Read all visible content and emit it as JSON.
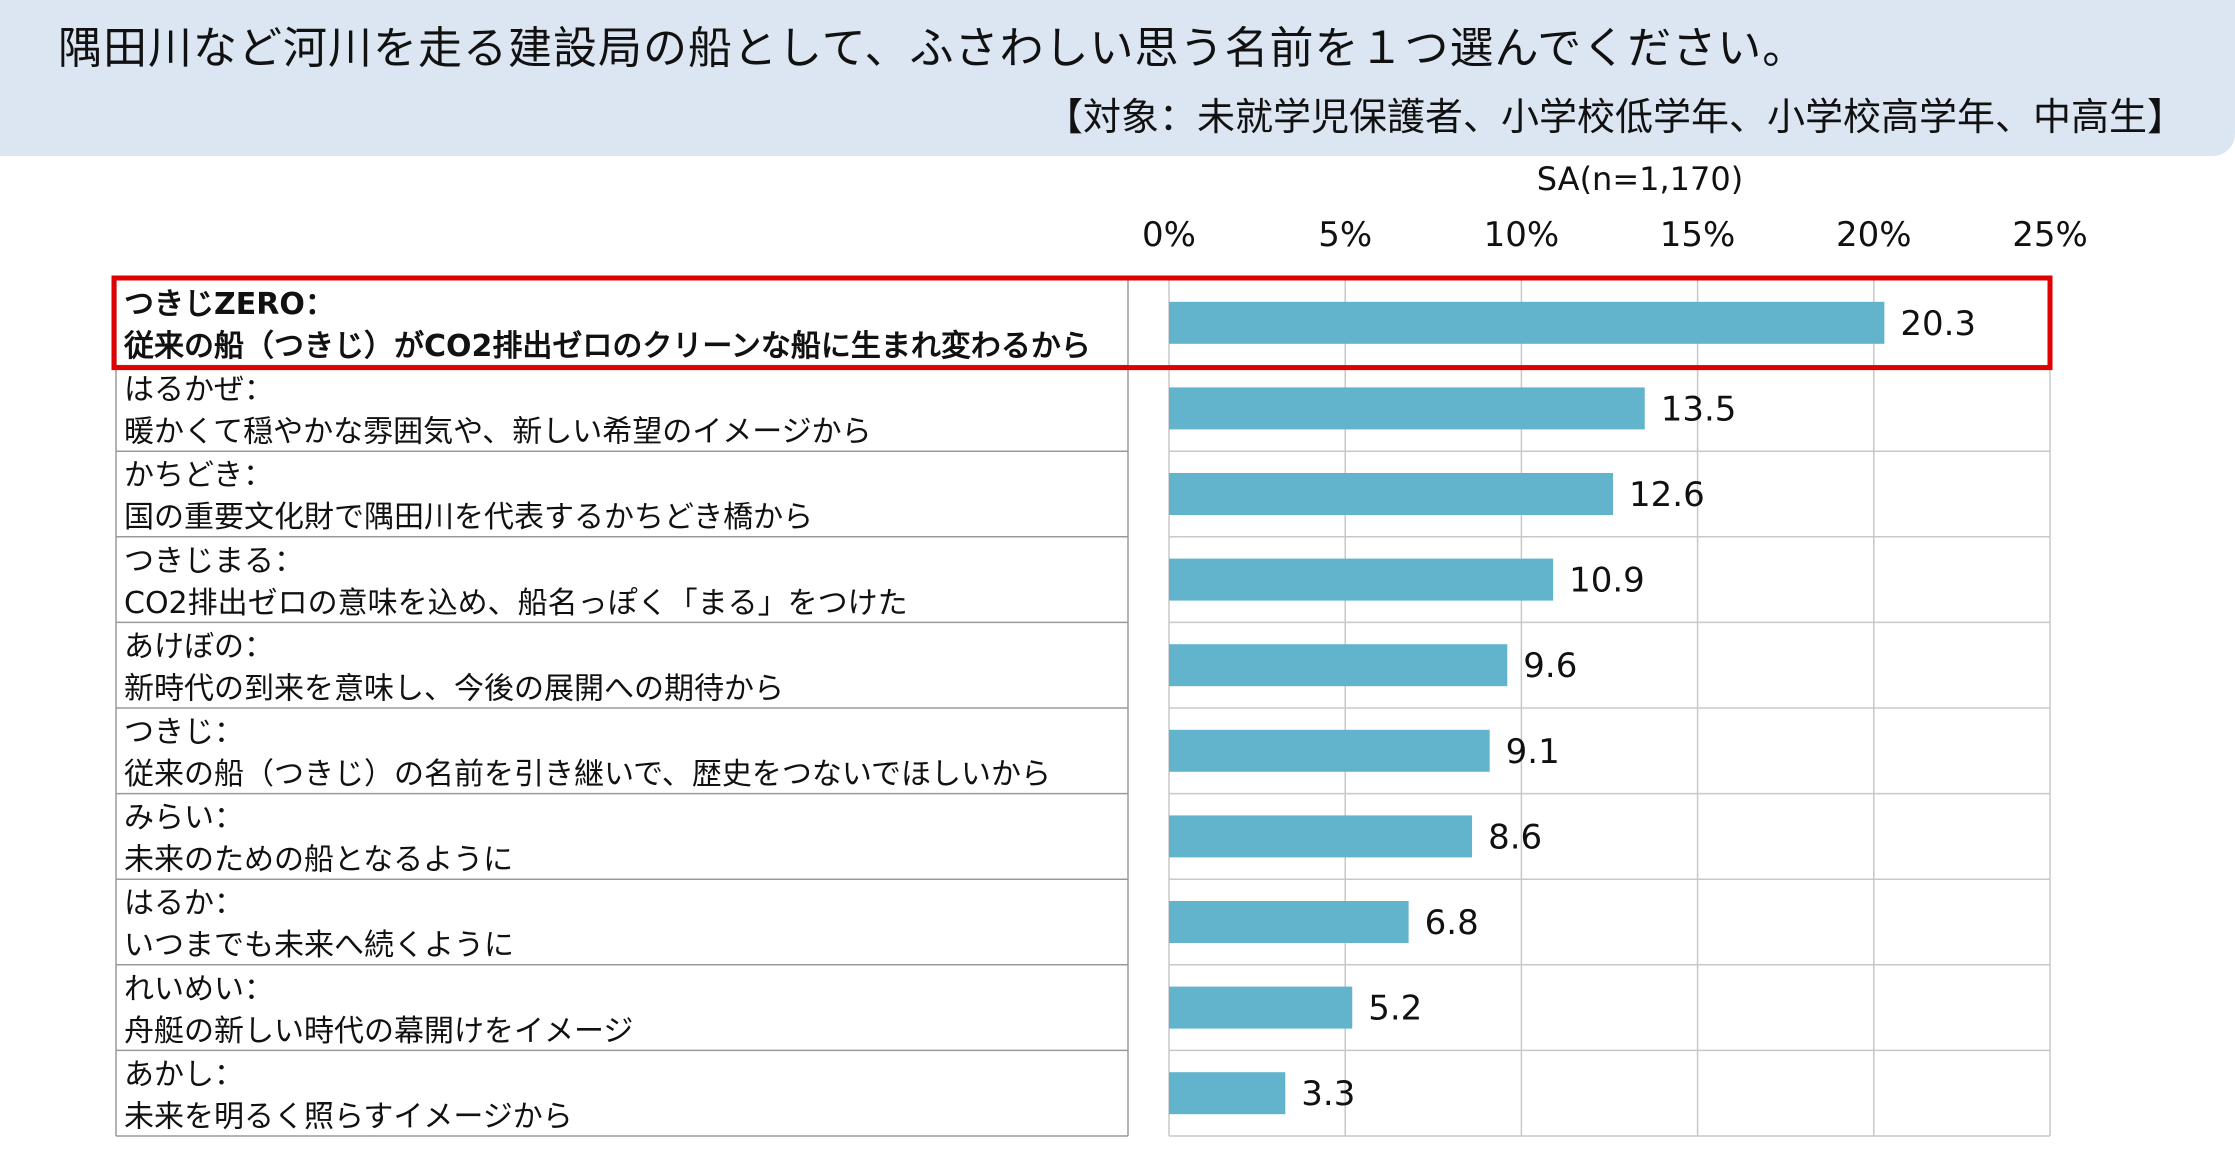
{
  "header": {
    "title": "隅田川など河川を走る建設局の船として、ふさわしい思う名前を１つ選んでください。",
    "target": "【対象：未就学児保護者、小学校低学年、小学校高学年、中高生】"
  },
  "chart_data": {
    "type": "bar",
    "orientation": "horizontal",
    "sample_note": "SA(n=1,170)",
    "xlim": [
      0,
      25
    ],
    "ticks": [
      "0%",
      "5%",
      "10%",
      "15%",
      "20%",
      "25%"
    ],
    "tick_values": [
      0,
      5,
      10,
      15,
      20,
      25
    ],
    "bar_color": "#62b4cc",
    "highlight_color": "#e00000",
    "highlight_index": 0,
    "categories": [
      {
        "name": "つきじZERO：",
        "reason": "従来の船（つきじ）がCO2排出ゼロのクリーンな船に生まれ変わるから"
      },
      {
        "name": "はるかぜ：",
        "reason": "暖かくて穏やかな雰囲気や、新しい希望のイメージから"
      },
      {
        "name": "かちどき：",
        "reason": "国の重要文化財で隅田川を代表するかちどき橋から"
      },
      {
        "name": "つきじまる：",
        "reason": "CO2排出ゼロの意味を込め、船名っぽく「まる」をつけた"
      },
      {
        "name": "あけぼの：",
        "reason": "新時代の到来を意味し、今後の展開への期待から"
      },
      {
        "name": "つきじ：",
        "reason": "従来の船（つきじ）の名前を引き継いで、歴史をつないでほしいから"
      },
      {
        "name": "みらい：",
        "reason": "未来のための船となるように"
      },
      {
        "name": "はるか：",
        "reason": "いつまでも未来へ続くように"
      },
      {
        "name": "れいめい：",
        "reason": "舟艇の新しい時代の幕開けをイメージ"
      },
      {
        "name": "あかし：",
        "reason": "未来を明るく照らすイメージから"
      }
    ],
    "values": [
      20.3,
      13.5,
      12.6,
      10.9,
      9.6,
      9.1,
      8.6,
      6.8,
      5.2,
      3.3
    ],
    "value_labels": [
      "20.3",
      "13.5",
      "12.6",
      "10.9",
      "9.6",
      "9.1",
      "8.6",
      "6.8",
      "5.2",
      "3.3"
    ]
  }
}
